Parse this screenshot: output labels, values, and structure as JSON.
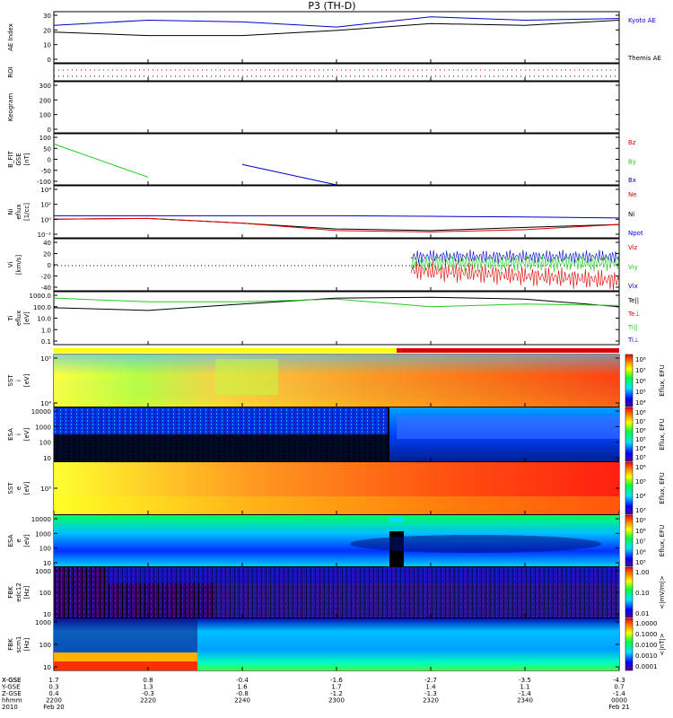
{
  "title": "P3 (TH-D)",
  "colors": {
    "blue": "#0000cc",
    "red": "#dd0000",
    "green": "#22cc22",
    "black": "#000000"
  },
  "panels": [
    {
      "id": "ae",
      "ylabel": [
        "AE Index"
      ],
      "ticks": [
        "0",
        "10",
        "20",
        "30"
      ],
      "legend": [
        {
          "text": "Kyoto AE",
          "color": "#0000cc"
        },
        {
          "text": "Themis AE",
          "color": "#000000"
        }
      ]
    },
    {
      "id": "roi",
      "ylabel": [
        "ROI"
      ],
      "ticks": [],
      "legend": []
    },
    {
      "id": "keogram",
      "ylabel": [
        "Keogram"
      ],
      "ticks": [
        "0",
        "100",
        "200",
        "300"
      ],
      "legend": []
    },
    {
      "id": "bfit",
      "ylabel": [
        "B_FIT",
        "GSE",
        "[nT]"
      ],
      "ticks": [
        "-100",
        "-50",
        "0",
        "50",
        "100"
      ],
      "legend": [
        {
          "text": "Bz",
          "color": "#dd0000"
        },
        {
          "text": "By",
          "color": "#22cc22"
        },
        {
          "text": "Bx",
          "color": "#0000cc"
        }
      ]
    },
    {
      "id": "ni",
      "ylabel": [
        "Ni",
        "eflux",
        "[1/cc]"
      ],
      "ticks": [
        "10⁻²",
        "10⁰",
        "10²",
        "10⁴"
      ],
      "legend": [
        {
          "text": "Ne",
          "color": "#dd0000"
        },
        {
          "text": "Ni",
          "color": "#000000"
        },
        {
          "text": "Npot",
          "color": "#0000cc"
        }
      ]
    },
    {
      "id": "vi",
      "ylabel": [
        "Vi",
        "[km/s]"
      ],
      "ticks": [
        "-40",
        "-20",
        "0",
        "20",
        "40"
      ],
      "legend": [
        {
          "text": "Viz",
          "color": "#dd0000"
        },
        {
          "text": "Viy",
          "color": "#22cc22"
        },
        {
          "text": "Vix",
          "color": "#0000cc"
        }
      ]
    },
    {
      "id": "ti",
      "ylabel": [
        "Ti",
        "eflux",
        "[eV]"
      ],
      "ticks": [
        "0.1",
        "1.0",
        "10.0",
        "100.0",
        "1000.0"
      ],
      "legend": [
        {
          "text": "Te||",
          "color": "#000000"
        },
        {
          "text": "Te⊥",
          "color": "#dd0000"
        },
        {
          "text": "Ti||",
          "color": "#22cc22"
        },
        {
          "text": "Ti⊥",
          "color": "#0000cc"
        }
      ]
    },
    {
      "id": "sst1",
      "ylabel": [
        "SST",
        "i",
        "[eV]"
      ],
      "ticks": [
        "10⁴",
        "10⁵"
      ],
      "legend": []
    },
    {
      "id": "esa1",
      "ylabel": [
        "ESA",
        "i",
        "[eV]"
      ],
      "ticks": [
        "10",
        "100",
        "1000",
        "10000"
      ],
      "legend": []
    },
    {
      "id": "sst2",
      "ylabel": [
        "SST",
        "e",
        "[eV]"
      ],
      "ticks": [
        "10⁵"
      ],
      "legend": []
    },
    {
      "id": "esa2",
      "ylabel": [
        "ESA",
        "e",
        "[eV]"
      ],
      "ticks": [
        "10",
        "100",
        "1000",
        "10000"
      ],
      "legend": []
    },
    {
      "id": "fbk1",
      "ylabel": [
        "FBK",
        "edc12",
        "[Hz]"
      ],
      "ticks": [
        "10",
        "100",
        "1000"
      ],
      "legend": []
    },
    {
      "id": "fbk2",
      "ylabel": [
        "FBK",
        "scm1",
        "[Hz]"
      ],
      "ticks": [
        "10",
        "100",
        "1000"
      ],
      "legend": []
    }
  ],
  "colorbars": [
    {
      "panel": "sst1",
      "label": "Eflux, EFU",
      "ticks": [
        "10⁸",
        "10⁷",
        "10⁶",
        "10⁵",
        "10⁴"
      ]
    },
    {
      "panel": "esa1",
      "label": "Eflux, EFU",
      "ticks": [
        "10⁸",
        "10⁷",
        "10⁶",
        "10⁵",
        "10⁴",
        "10³"
      ]
    },
    {
      "panel": "sst2",
      "label": "Eflux, EFU",
      "ticks": [
        "10⁶",
        "10⁵",
        "10⁴",
        "10³"
      ]
    },
    {
      "panel": "esa2",
      "label": "Eflux, EFU",
      "ticks": [
        "10⁹",
        "10⁸",
        "10⁷",
        "10⁶",
        "10⁵"
      ]
    },
    {
      "panel": "fbk1",
      "label": "<|mV/m|>",
      "ticks": [
        "1.00",
        "0.10",
        "0.01"
      ]
    },
    {
      "panel": "fbk2",
      "label": "<|nT|>",
      "ticks": [
        "1.0000",
        "0.1000",
        "0.0100",
        "0.0010",
        "0.0001"
      ]
    }
  ],
  "xaxis": {
    "row_labels": [
      "X-GSE",
      "Y-GSE",
      "Z-GSE",
      "hhmm",
      "2010"
    ],
    "ticks": [
      {
        "x": "1.7",
        "y": "0.3",
        "z": "0.4",
        "t": "2200",
        "d": "Feb 20"
      },
      {
        "x": "0.8",
        "y": "1.3",
        "z": "-0.3",
        "t": "2220",
        "d": ""
      },
      {
        "x": "-0.4",
        "y": "1.6",
        "z": "-0.8",
        "t": "2240",
        "d": ""
      },
      {
        "x": "-1.6",
        "y": "1.7",
        "z": "-1.2",
        "t": "2300",
        "d": ""
      },
      {
        "x": "-2.7",
        "y": "1.4",
        "z": "-1.3",
        "t": "2320",
        "d": ""
      },
      {
        "x": "-3.5",
        "y": "1.1",
        "z": "-1.4",
        "t": "2340",
        "d": ""
      },
      {
        "x": "-4.3",
        "y": "0.7",
        "z": "-1.4",
        "t": "0000",
        "d": "Feb 21"
      }
    ]
  },
  "chart_data": {
    "type": "line",
    "title": "P3 (TH-D)",
    "x": [
      "2200",
      "2220",
      "2240",
      "2300",
      "2320",
      "2340",
      "0000"
    ],
    "series": [
      {
        "name": "Kyoto AE",
        "values": [
          22,
          25,
          24,
          21,
          27,
          25,
          26
        ]
      },
      {
        "name": "Themis AE",
        "values": [
          18,
          16,
          16,
          19,
          23,
          22,
          25
        ]
      },
      {
        "name": "By",
        "values": [
          60,
          -70,
          null,
          null,
          null,
          null,
          null
        ]
      },
      {
        "name": "Bx",
        "values": [
          null,
          null,
          -20,
          -100,
          null,
          null,
          null
        ]
      },
      {
        "name": "Npot",
        "values": [
          3,
          3,
          3,
          3,
          2.5,
          2,
          1.5
        ]
      },
      {
        "name": "Ni",
        "values": [
          1,
          1.3,
          0.3,
          0.05,
          0.03,
          0.08,
          0.2
        ]
      },
      {
        "name": "Ne",
        "values": [
          1,
          1.3,
          0.3,
          0.03,
          0.02,
          0.04,
          0.2
        ]
      },
      {
        "name": "Te||",
        "values": [
          100,
          60,
          200,
          600,
          700,
          500,
          120
        ]
      },
      {
        "name": "Ti||",
        "values": [
          600,
          300,
          300,
          500,
          120,
          200,
          150
        ]
      }
    ]
  }
}
